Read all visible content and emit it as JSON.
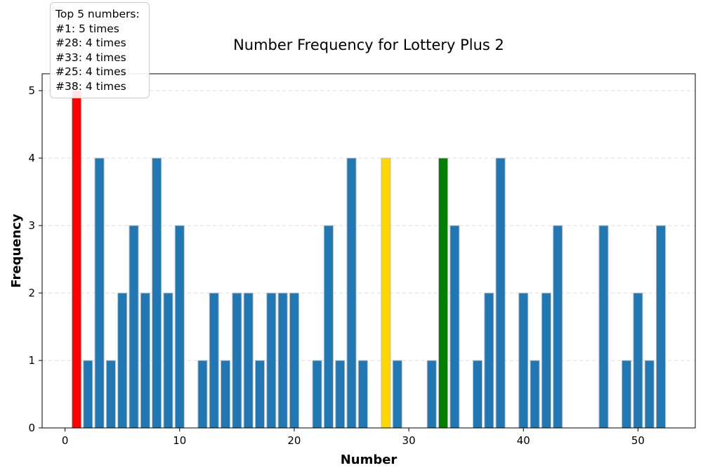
{
  "chart_data": {
    "type": "bar",
    "title": "Number Frequency for Lottery Plus 2",
    "xlabel": "Number",
    "ylabel": "Frequency",
    "xlim": [
      -2,
      55
    ],
    "ylim": [
      0,
      5.25
    ],
    "xticks": [
      0,
      10,
      20,
      30,
      40,
      50
    ],
    "yticks": [
      0,
      1,
      2,
      3,
      4,
      5
    ],
    "grid": "y-dashed",
    "x": [
      1,
      2,
      3,
      4,
      5,
      6,
      7,
      8,
      9,
      10,
      12,
      13,
      14,
      15,
      16,
      17,
      18,
      19,
      20,
      22,
      23,
      24,
      25,
      26,
      28,
      29,
      32,
      33,
      34,
      36,
      37,
      38,
      40,
      41,
      42,
      43,
      47,
      49,
      50,
      51,
      52
    ],
    "values": [
      5,
      1,
      4,
      1,
      2,
      3,
      2,
      4,
      2,
      3,
      1,
      2,
      1,
      2,
      2,
      1,
      2,
      2,
      2,
      1,
      3,
      1,
      4,
      1,
      4,
      1,
      1,
      4,
      3,
      1,
      2,
      4,
      2,
      1,
      2,
      3,
      3,
      1,
      2,
      1,
      3
    ],
    "default_color": "#1f77b4",
    "highlight_colors": {
      "1": "#ff0000",
      "28": "#ffd700",
      "33": "#008000"
    },
    "annotation": {
      "placement": "top-left",
      "lines": [
        "Top 5 numbers:",
        "#1: 5 times",
        "#28: 4 times",
        "#33: 4 times",
        "#25: 4 times",
        "#38: 4 times"
      ]
    }
  }
}
